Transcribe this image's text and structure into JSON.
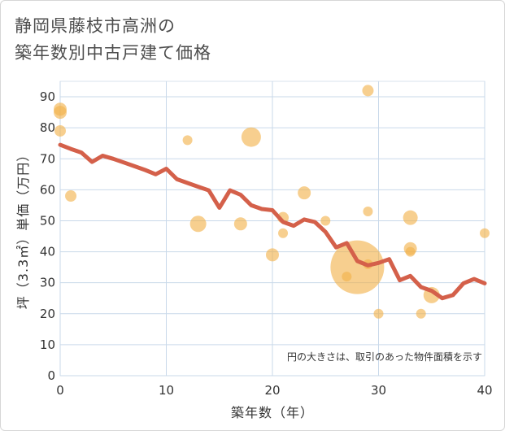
{
  "title_line1": "静岡県藤枝市高洲の",
  "title_line2": "築年数別中古戸建て価格",
  "chart_data": {
    "type": "scatter",
    "title": "静岡県藤枝市高洲の築年数別中古戸建て価格",
    "xlabel": "築年数（年）",
    "ylabel": "坪（3.3㎡）単価（万円）",
    "xlim": [
      0,
      40
    ],
    "ylim": [
      0,
      95
    ],
    "x_ticks": [
      "0",
      "10",
      "20",
      "30",
      "40"
    ],
    "y_ticks": [
      "0",
      "10",
      "20",
      "30",
      "40",
      "50",
      "60",
      "70",
      "80",
      "90"
    ],
    "x_tick_values": [
      0,
      10,
      20,
      30,
      40
    ],
    "y_tick_values": [
      0,
      10,
      20,
      30,
      40,
      50,
      60,
      70,
      80,
      90
    ],
    "grid": true,
    "annotation": "円の大きさは、取引のあった物件面積を示す",
    "bubble_color": "#f2b24a",
    "line_color": "#d4604a",
    "bubbles": [
      {
        "x": 0,
        "y": 86,
        "size": 8
      },
      {
        "x": 0,
        "y": 85,
        "size": 8
      },
      {
        "x": 0,
        "y": 79,
        "size": 7
      },
      {
        "x": 1,
        "y": 58,
        "size": 7
      },
      {
        "x": 12,
        "y": 76,
        "size": 6
      },
      {
        "x": 13,
        "y": 49,
        "size": 10
      },
      {
        "x": 17,
        "y": 49,
        "size": 8
      },
      {
        "x": 18,
        "y": 77,
        "size": 12
      },
      {
        "x": 20,
        "y": 39,
        "size": 8
      },
      {
        "x": 21,
        "y": 51,
        "size": 7
      },
      {
        "x": 21,
        "y": 46,
        "size": 6
      },
      {
        "x": 23,
        "y": 59,
        "size": 8
      },
      {
        "x": 25,
        "y": 50,
        "size": 6
      },
      {
        "x": 27,
        "y": 32,
        "size": 6
      },
      {
        "x": 28,
        "y": 35,
        "size": 33
      },
      {
        "x": 29,
        "y": 92,
        "size": 7
      },
      {
        "x": 29,
        "y": 53,
        "size": 6
      },
      {
        "x": 29,
        "y": 36,
        "size": 6
      },
      {
        "x": 30,
        "y": 20,
        "size": 6
      },
      {
        "x": 33,
        "y": 51,
        "size": 9
      },
      {
        "x": 33,
        "y": 41,
        "size": 8
      },
      {
        "x": 33,
        "y": 40,
        "size": 6
      },
      {
        "x": 34,
        "y": 20,
        "size": 6
      },
      {
        "x": 35,
        "y": 26,
        "size": 10
      },
      {
        "x": 40,
        "y": 46,
        "size": 6
      }
    ],
    "trend": {
      "x": [
        0,
        1,
        2,
        3,
        4,
        5,
        6,
        7,
        8,
        9,
        10,
        11,
        12,
        13,
        14,
        15,
        16,
        17,
        18,
        19,
        20,
        21,
        22,
        23,
        24,
        25,
        26,
        27,
        28,
        29,
        30,
        31,
        32,
        33,
        34,
        35,
        36,
        37,
        38,
        39,
        40
      ],
      "y": [
        74.5,
        73.2,
        72,
        69,
        71,
        70,
        68.8,
        67.6,
        66.4,
        65,
        66.8,
        63.4,
        62.2,
        61,
        59.8,
        54.2,
        59.8,
        58.4,
        55,
        53.8,
        53.4,
        49.6,
        48.4,
        50.4,
        49.6,
        46.4,
        41.4,
        42.8,
        37,
        35.6,
        36.4,
        37.6,
        30.8,
        32.2,
        28.6,
        27.4,
        25,
        26,
        29.8,
        31.2,
        29.8
      ]
    }
  }
}
